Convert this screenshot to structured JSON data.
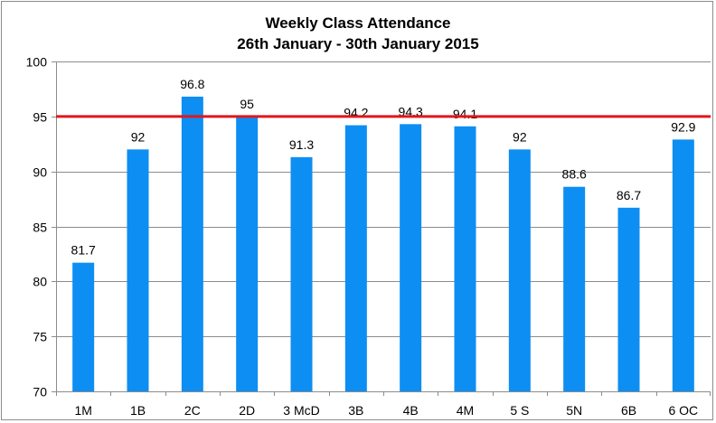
{
  "chart_data": {
    "type": "bar",
    "title": "Weekly Class Attendance",
    "subtitle": "26th January - 30th January 2015",
    "categories": [
      "1M",
      "1B",
      "2C",
      "2D",
      "3 McD",
      "3B",
      "4B",
      "4M",
      "5 S",
      "5N",
      "6B",
      "6 OC"
    ],
    "values": [
      81.7,
      92,
      96.8,
      95,
      91.3,
      94.2,
      94.3,
      94.1,
      92,
      88.6,
      86.7,
      92.9
    ],
    "data_labels": [
      "81.7",
      "92",
      "96.8",
      "95",
      "91.3",
      "94.2",
      "94.3",
      "94.1",
      "92",
      "88.6",
      "86.7",
      "92.9"
    ],
    "ylim": [
      70,
      100
    ],
    "yticks": [
      70,
      75,
      80,
      85,
      90,
      95,
      100
    ],
    "reference_line": 95,
    "grid": true,
    "legend": "none",
    "bar_color": "#0d8ef2",
    "reference_line_color": "#e0171a",
    "grid_color": "#8c8c8c"
  }
}
